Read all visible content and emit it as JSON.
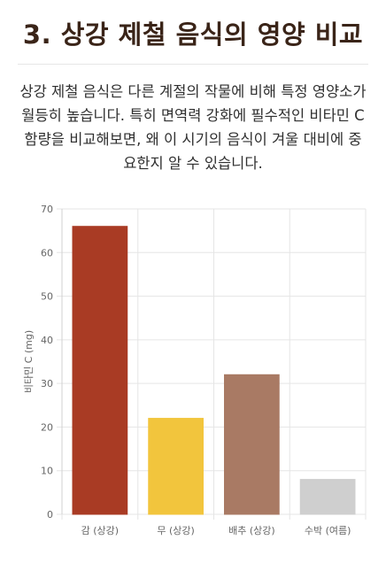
{
  "section": {
    "title": "3. 상강 제철 음식의 영양 비교",
    "intro": "상강 제철 음식은 다른 계절의 작물에 비해 특정 영양소가 월등히 높습니다. 특히 면역력 강화에 필수적인 비타민 C 함량을 비교해보면, 왜 이 시기의 음식이 겨울 대비에 중요한지 알 수 있습니다."
  },
  "chart_data": {
    "type": "bar",
    "categories": [
      "감 (상강)",
      "무 (상강)",
      "배추 (상강)",
      "수박 (여름)"
    ],
    "values": [
      66,
      22,
      32,
      8
    ],
    "colors": [
      "#a93b24",
      "#f2c53d",
      "#a97a64",
      "#cfcfcf"
    ],
    "xlabel": "",
    "ylabel": "비타민 C (mg)",
    "ylim": [
      0,
      70
    ],
    "yticks": [
      0,
      10,
      20,
      30,
      40,
      50,
      60,
      70
    ],
    "grid": true,
    "legend": "none"
  }
}
